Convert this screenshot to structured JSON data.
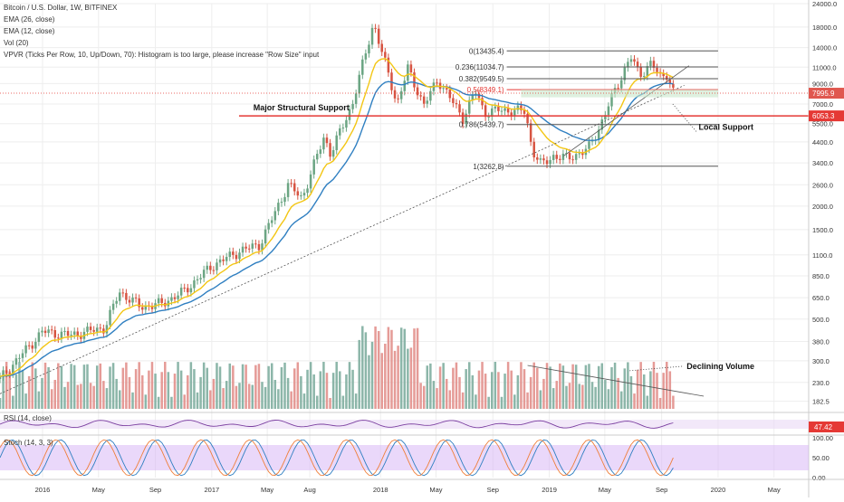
{
  "header": {
    "title": "Bitcoin / U.S. Dollar, 1W, BITFINEX",
    "indicators": [
      "EMA (26, close)",
      "EMA (12, close)",
      "Vol (20)",
      "VPVR (Ticks Per Row, 10, Up/Down, 70): Histogram is too large, please increase \"Row Size\" input"
    ]
  },
  "colors": {
    "up": "#6ba583",
    "down": "#d75442",
    "ema26": "#2f7fc1",
    "ema12": "#f3c614",
    "vol_up": "#78a99a",
    "vol_down": "#e08a85",
    "fib": "#555555",
    "support": "#e53935",
    "price_badge": "#e0574f",
    "rsi_band": "#ead9f5",
    "stoch_band": "#d9b8f5"
  },
  "chart_data": {
    "type": "candlestick",
    "title": "Bitcoin / U.S. Dollar, 1W, BITFINEX",
    "scale": "log",
    "ylim": [
      170,
      24000
    ],
    "x_range": [
      "2015-10-01",
      "2020-07-15"
    ],
    "y_ticks": [
      "24000.0",
      "18000.0",
      "14000.0",
      "11000.0",
      "9000.0",
      "7000.0",
      "5500.0",
      "4400.0",
      "3400.0",
      "2600.0",
      "2000.0",
      "1500.0",
      "1100.0",
      "850.0",
      "650.0",
      "500.0",
      "380.0",
      "300.0",
      "230.0",
      "182.5"
    ],
    "y_tick_values": [
      24000,
      18000,
      14000,
      11000,
      9000,
      7000,
      5500,
      4400,
      3400,
      2600,
      2000,
      1500,
      1100,
      850,
      650,
      500,
      380,
      300,
      230,
      182.5
    ],
    "x_ticks": [
      {
        "label": "2016",
        "date": "2016-01-01"
      },
      {
        "label": "May",
        "date": "2016-05-01"
      },
      {
        "label": "Sep",
        "date": "2016-09-01"
      },
      {
        "label": "2017",
        "date": "2017-01-01"
      },
      {
        "label": "May",
        "date": "2017-05-01"
      },
      {
        "label": "Aug",
        "date": "2017-08-01"
      },
      {
        "label": "2018",
        "date": "2018-01-01"
      },
      {
        "label": "May",
        "date": "2018-05-01"
      },
      {
        "label": "Sep",
        "date": "2018-09-01"
      },
      {
        "label": "2019",
        "date": "2019-01-01"
      },
      {
        "label": "May",
        "date": "2019-05-01"
      },
      {
        "label": "Sep",
        "date": "2019-09-01"
      },
      {
        "label": "2020",
        "date": "2020-01-01"
      },
      {
        "label": "May",
        "date": "2020-05-01"
      }
    ],
    "price_anchors": [
      [
        "2015-10-01",
        240
      ],
      [
        "2015-11-15",
        320
      ],
      [
        "2016-01-01",
        430
      ],
      [
        "2016-03-01",
        410
      ],
      [
        "2016-05-15",
        450
      ],
      [
        "2016-06-15",
        700
      ],
      [
        "2016-08-01",
        580
      ],
      [
        "2016-09-15",
        605
      ],
      [
        "2016-11-01",
        700
      ],
      [
        "2017-01-01",
        960
      ],
      [
        "2017-03-01",
        1150
      ],
      [
        "2017-04-15",
        1250
      ],
      [
        "2017-06-15",
        2600
      ],
      [
        "2017-07-15",
        2200
      ],
      [
        "2017-09-01",
        4700
      ],
      [
        "2017-09-15",
        3800
      ],
      [
        "2017-11-01",
        7000
      ],
      [
        "2017-12-17",
        19000
      ],
      [
        "2018-01-01",
        14000
      ],
      [
        "2018-02-06",
        7000
      ],
      [
        "2018-03-01",
        10800
      ],
      [
        "2018-04-05",
        6900
      ],
      [
        "2018-05-05",
        9500
      ],
      [
        "2018-06-28",
        5900
      ],
      [
        "2018-07-25",
        8200
      ],
      [
        "2018-08-14",
        6300
      ],
      [
        "2018-09-15",
        6500
      ],
      [
        "2018-11-10",
        6400
      ],
      [
        "2018-11-25",
        4000
      ],
      [
        "2018-12-15",
        3300
      ],
      [
        "2019-01-10",
        3700
      ],
      [
        "2019-02-10",
        3600
      ],
      [
        "2019-03-25",
        4000
      ],
      [
        "2019-04-20",
        5300
      ],
      [
        "2019-05-25",
        8500
      ],
      [
        "2019-06-26",
        12500
      ],
      [
        "2019-07-15",
        10000
      ],
      [
        "2019-08-10",
        11600
      ],
      [
        "2019-08-28",
        9700
      ],
      [
        "2019-09-15",
        10300
      ],
      [
        "2019-09-22",
        8300
      ],
      [
        "2019-09-29",
        8000
      ]
    ],
    "fib_levels": [
      {
        "label": "0(13435.4)",
        "value": 13435.4
      },
      {
        "label": "0.236(11034.7)",
        "value": 11034.7
      },
      {
        "label": "0.382(9549.5)",
        "value": 9549.5
      },
      {
        "label": "0.5(8349.1)",
        "value": 8349.1
      },
      {
        "label": "0.786(5439.7)",
        "value": 5439.7
      },
      {
        "label": "1(3262.8)",
        "value": 3262.8
      }
    ],
    "fib_range": [
      "2018-10-01",
      "2020-01-01"
    ],
    "support_line": {
      "label": "Major Structural Support",
      "value": 6053.3
    },
    "last_price": 7995.9,
    "last_price_label": "7995.9",
    "support_price_label": "6053.3",
    "annotations": [
      {
        "text": "Local Support"
      },
      {
        "text": "Declining Volume"
      }
    ],
    "volume_y_ticks": [
      "230.0",
      "182.5"
    ],
    "rsi": {
      "label": "RSI (14, close)",
      "value_label": "47.42",
      "ylim": [
        0,
        100
      ]
    },
    "stoch": {
      "label": "Stoch (14, 3, 3)",
      "ylim": [
        0,
        100
      ],
      "y_ticks": [
        "100.00",
        "50.00",
        "0.00"
      ]
    }
  }
}
